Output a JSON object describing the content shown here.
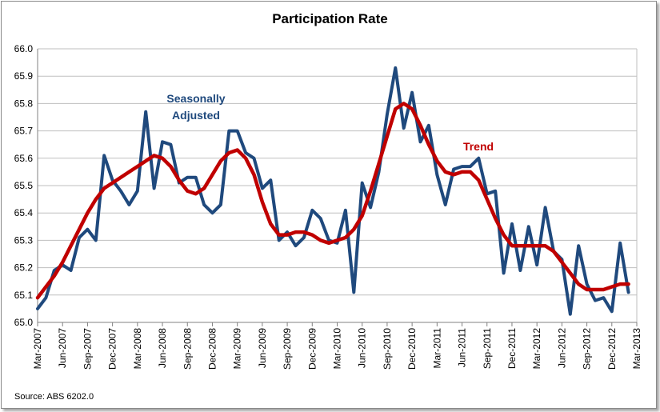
{
  "chart_data": {
    "type": "line",
    "title": "Participation Rate",
    "xlabel": "",
    "ylabel": "",
    "ylim": [
      65.0,
      66.0
    ],
    "yticks": [
      "65.0",
      "65.1",
      "65.2",
      "65.3",
      "65.4",
      "65.5",
      "65.6",
      "65.7",
      "65.8",
      "65.9",
      "66.0"
    ],
    "xticks": [
      "Mar-2007",
      "Jun-2007",
      "Sep-2007",
      "Dec-2007",
      "Mar-2008",
      "Jun-2008",
      "Sep-2008",
      "Dec-2008",
      "Mar-2009",
      "Jun-2009",
      "Sep-2009",
      "Dec-2009",
      "Mar-2010",
      "Jun-2010",
      "Sep-2010",
      "Dec-2010",
      "Mar-2011",
      "Jun-2011",
      "Sep-2011",
      "Dec-2011",
      "Mar-2012",
      "Jun-2012",
      "Sep-2012",
      "Dec-2012",
      "Mar-2013"
    ],
    "grid": true,
    "x_start": "Mar-2007",
    "frequency": "monthly",
    "series": [
      {
        "name": "Seasonally Adjusted",
        "color": "#1f497d",
        "values": [
          65.05,
          65.09,
          65.19,
          65.21,
          65.19,
          65.31,
          65.34,
          65.3,
          65.61,
          65.52,
          65.48,
          65.43,
          65.48,
          65.77,
          65.49,
          65.66,
          65.65,
          65.51,
          65.53,
          65.53,
          65.43,
          65.4,
          65.43,
          65.7,
          65.7,
          65.62,
          65.6,
          65.49,
          65.52,
          65.3,
          65.33,
          65.28,
          65.31,
          65.41,
          65.38,
          65.3,
          65.29,
          65.41,
          65.11,
          65.51,
          65.42,
          65.55,
          65.76,
          65.93,
          65.71,
          65.84,
          65.66,
          65.72,
          65.54,
          65.43,
          65.56,
          65.57,
          65.57,
          65.6,
          65.47,
          65.48,
          65.18,
          65.36,
          65.19,
          65.35,
          65.21,
          65.42,
          65.26,
          65.23,
          65.03,
          65.28,
          65.14,
          65.08,
          65.09,
          65.04,
          65.29,
          65.11
        ]
      },
      {
        "name": "Trend",
        "color": "#c00000",
        "values": [
          65.09,
          65.13,
          65.17,
          65.22,
          65.28,
          65.34,
          65.4,
          65.45,
          65.49,
          65.51,
          65.53,
          65.55,
          65.57,
          65.59,
          65.61,
          65.6,
          65.57,
          65.52,
          65.48,
          65.47,
          65.49,
          65.54,
          65.59,
          65.62,
          65.63,
          65.6,
          65.54,
          65.44,
          65.36,
          65.32,
          65.32,
          65.33,
          65.33,
          65.32,
          65.3,
          65.29,
          65.3,
          65.31,
          65.34,
          65.39,
          65.48,
          65.58,
          65.68,
          65.78,
          65.8,
          65.78,
          65.72,
          65.65,
          65.59,
          65.55,
          65.54,
          65.55,
          65.55,
          65.52,
          65.45,
          65.38,
          65.32,
          65.28,
          65.28,
          65.28,
          65.28,
          65.28,
          65.26,
          65.22,
          65.18,
          65.14,
          65.12,
          65.12,
          65.12,
          65.13,
          65.14,
          65.14
        ]
      }
    ],
    "annotations": [
      {
        "label": "Seasonally Adjusted",
        "lines": [
          "Seasonally",
          "Adjusted"
        ],
        "color": "#1f497d"
      },
      {
        "label": "Trend",
        "lines": [
          "Trend"
        ],
        "color": "#c00000"
      }
    ],
    "source": "Source: ABS 6202.0"
  }
}
